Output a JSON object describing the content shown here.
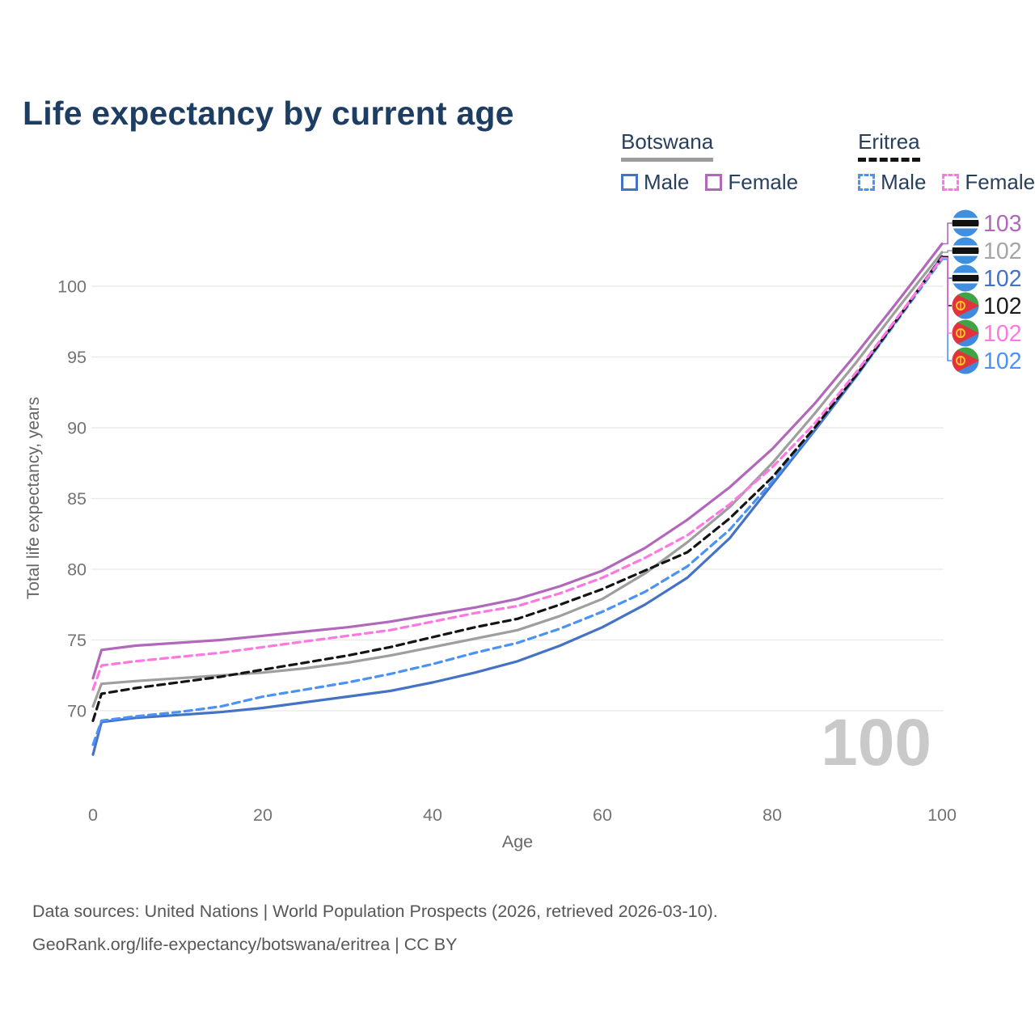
{
  "title": "Life expectancy by current age",
  "legend": {
    "groups": [
      {
        "name": "Botswana",
        "line_style": "solid",
        "underline_color": "#9c9c9c",
        "items": [
          {
            "label": "Male",
            "color": "#4472c4",
            "dashed": false
          },
          {
            "label": "Female",
            "color": "#b168bb",
            "dashed": false
          }
        ]
      },
      {
        "name": "Eritrea",
        "line_style": "dashed",
        "underline_color": "#141414",
        "items": [
          {
            "label": "Male",
            "color": "#4b92f5",
            "dashed": true
          },
          {
            "label": "Female",
            "color": "#ff77e1",
            "dashed": true
          }
        ]
      }
    ]
  },
  "watermark": "100",
  "footer": {
    "line1": "Data sources: United Nations | World Population Prospects (2026, retrieved 2026-03-10).",
    "line2": "GeoRank.org/life-expectancy/botswana/eritrea | CC BY"
  },
  "chart_data": {
    "type": "line",
    "title": "Life expectancy by current age",
    "xlabel": "Age",
    "ylabel": "Total life expectancy, years",
    "x_ticks": [
      0,
      20,
      40,
      60,
      80,
      100
    ],
    "y_ticks": [
      70,
      75,
      80,
      85,
      90,
      95,
      100
    ],
    "xlim": [
      0,
      100
    ],
    "ylim": [
      65,
      104
    ],
    "grid": "horizontal-only",
    "legend_position": "top-right",
    "ages": [
      0,
      1,
      5,
      10,
      15,
      20,
      25,
      30,
      35,
      40,
      45,
      50,
      55,
      60,
      65,
      70,
      75,
      80,
      85,
      90,
      95,
      100
    ],
    "series": [
      {
        "name": "Botswana Male",
        "country": "Botswana",
        "sex": "Male",
        "color": "#4472c4",
        "dashed": false,
        "values": [
          66.9,
          69.2,
          69.5,
          69.7,
          69.9,
          70.2,
          70.6,
          71.0,
          71.4,
          72.0,
          72.7,
          73.5,
          74.6,
          75.9,
          77.5,
          79.4,
          82.2,
          86.0,
          89.8,
          93.7,
          97.9,
          102.1
        ],
        "end_label": "102",
        "label_color": "#4472c4",
        "flag": "botswana",
        "label_row": 2
      },
      {
        "name": "Botswana Both sexes",
        "country": "Botswana",
        "sex": "Both",
        "color": "#9e9e9e",
        "dashed": false,
        "values": [
          70.3,
          71.9,
          72.1,
          72.3,
          72.5,
          72.7,
          73.0,
          73.4,
          73.9,
          74.5,
          75.1,
          75.7,
          76.7,
          77.9,
          79.7,
          81.9,
          84.4,
          87.5,
          91.0,
          94.7,
          98.6,
          102.4
        ],
        "end_label": "102",
        "label_color": "#a5a5a5",
        "flag": "botswana",
        "label_row": 1
      },
      {
        "name": "Botswana Female",
        "country": "Botswana",
        "sex": "Female",
        "color": "#b168bb",
        "dashed": false,
        "values": [
          72.3,
          74.3,
          74.6,
          74.8,
          75.0,
          75.3,
          75.6,
          75.9,
          76.3,
          76.8,
          77.3,
          77.9,
          78.8,
          79.9,
          81.5,
          83.5,
          85.8,
          88.5,
          91.7,
          95.3,
          99.1,
          103.0
        ],
        "end_label": "103",
        "label_color": "#b168bb",
        "flag": "botswana",
        "label_row": 0
      },
      {
        "name": "Eritrea Male",
        "country": "Eritrea",
        "sex": "Male",
        "color": "#4b92f5",
        "dashed": true,
        "values": [
          67.6,
          69.3,
          69.6,
          69.9,
          70.3,
          71.0,
          71.5,
          72.0,
          72.6,
          73.3,
          74.1,
          74.8,
          75.8,
          77.0,
          78.4,
          80.2,
          82.8,
          86.2,
          89.9,
          93.7,
          97.8,
          101.9
        ],
        "end_label": "102",
        "label_color": "#4b92f5",
        "flag": "eritrea",
        "label_row": 5
      },
      {
        "name": "Eritrea Both sexes",
        "country": "Eritrea",
        "sex": "Both",
        "color": "#141414",
        "dashed": true,
        "values": [
          69.3,
          71.2,
          71.6,
          72.0,
          72.4,
          72.9,
          73.4,
          73.9,
          74.5,
          75.2,
          75.9,
          76.5,
          77.5,
          78.6,
          79.9,
          81.2,
          83.6,
          86.5,
          90.0,
          93.8,
          97.9,
          102.1
        ],
        "end_label": "102",
        "label_color": "#1c1c1c",
        "flag": "eritrea",
        "label_row": 3
      },
      {
        "name": "Eritrea Female",
        "country": "Eritrea",
        "sex": "Female",
        "color": "#ff77e1",
        "dashed": true,
        "values": [
          71.5,
          73.2,
          73.5,
          73.8,
          74.1,
          74.5,
          74.9,
          75.3,
          75.7,
          76.3,
          76.9,
          77.4,
          78.3,
          79.4,
          80.8,
          82.4,
          84.6,
          87.2,
          90.3,
          94.0,
          98.0,
          102.0
        ],
        "end_label": "102",
        "label_color": "#ff77e1",
        "flag": "eritrea",
        "label_row": 4
      }
    ]
  },
  "colors": {
    "title_text": "#1d3d63",
    "legend_text": "#28405c",
    "tick_text": "#737373",
    "axis_label_text": "#666666",
    "gridline": "#e8e8e8",
    "watermark": "#c9c9c9",
    "footer_text": "#575757",
    "botswana_flag_blue": "#3f8fde",
    "eritrea_flag_green": "#3fa443",
    "eritrea_flag_blue": "#4189dd",
    "eritrea_flag_red": "#e2333c",
    "eritrea_flag_gold": "#ffc726"
  }
}
